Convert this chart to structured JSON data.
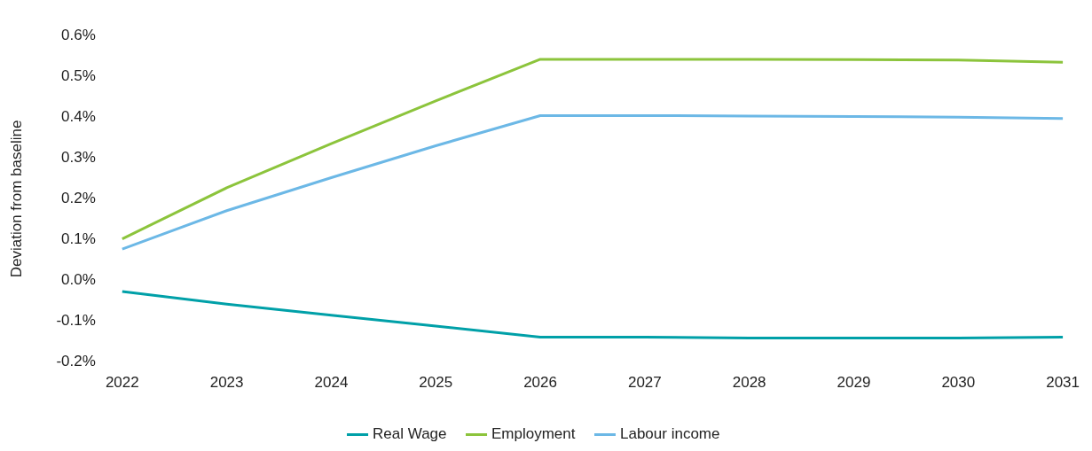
{
  "chart_data": {
    "type": "line",
    "ylabel": "Deviation from baseline",
    "categories": [
      "2022",
      "2023",
      "2024",
      "2025",
      "2026",
      "2027",
      "2028",
      "2029",
      "2030",
      "2031"
    ],
    "series": [
      {
        "name": "Real Wage",
        "color": "#00a0a8",
        "values": [
          -0.027,
          -0.058,
          -0.085,
          -0.112,
          -0.139,
          -0.139,
          -0.141,
          -0.141,
          -0.141,
          -0.139
        ]
      },
      {
        "name": "Employment",
        "color": "#8cc43c",
        "values": [
          0.102,
          0.227,
          0.335,
          0.44,
          0.542,
          0.542,
          0.542,
          0.541,
          0.54,
          0.535
        ]
      },
      {
        "name": "Labour income",
        "color": "#6cb8e6",
        "values": [
          0.077,
          0.171,
          0.252,
          0.33,
          0.404,
          0.404,
          0.403,
          0.402,
          0.4,
          0.397
        ]
      }
    ],
    "ylim": [
      -0.2,
      0.6
    ],
    "yticks": [
      {
        "value": -0.2,
        "label": "-0.2%"
      },
      {
        "value": -0.1,
        "label": "-0.1%"
      },
      {
        "value": 0,
        "label": "0.0%"
      },
      {
        "value": 0.1,
        "label": "0.1%"
      },
      {
        "value": 0.2,
        "label": "0.2%"
      },
      {
        "value": 0.3,
        "label": "0.3%"
      },
      {
        "value": 0.4,
        "label": "0.4%"
      },
      {
        "value": 0.5,
        "label": "0.5%"
      },
      {
        "value": 0.6,
        "label": "0.6%"
      }
    ],
    "grid": false,
    "legend": "bottom",
    "marker": "none",
    "line_style": "solid"
  }
}
